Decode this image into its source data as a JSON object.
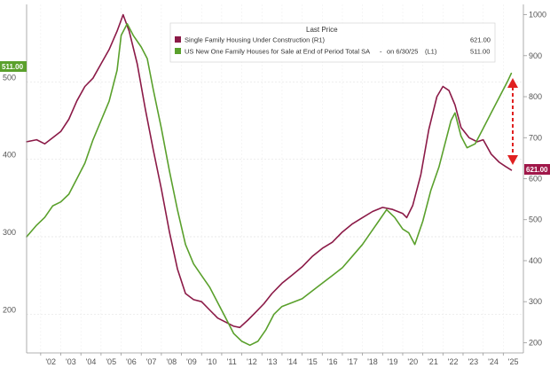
{
  "chart_data": {
    "type": "line",
    "title": "",
    "xlabel": "",
    "ylabel": "",
    "x_tick_labels": [
      "'02",
      "'03",
      "'04",
      "'05",
      "'06",
      "'07",
      "'08",
      "'09",
      "'10",
      "'11",
      "'12",
      "'13",
      "'14",
      "'15",
      "'16",
      "'17",
      "'18",
      "'19",
      "'20",
      "'21",
      "'22",
      "'23",
      "'24",
      "'25"
    ],
    "x_range": [
      2001.3,
      2026.0
    ],
    "left_axis": {
      "ylim": [
        150,
        600
      ],
      "ticks": [
        200,
        300,
        400,
        500
      ]
    },
    "right_axis": {
      "ylim": [
        175,
        1025
      ],
      "ticks": [
        200,
        300,
        400,
        500,
        600,
        700,
        800,
        900,
        1000
      ]
    },
    "legend": {
      "header": "Last Price",
      "placement": "top-center"
    },
    "grid": true,
    "series": [
      {
        "name": "Single Family Housing Under Construction (R1)",
        "last_price": "621.00",
        "badge": "621.00",
        "axis": "right",
        "color": "#8b1a47",
        "x": [
          2001.3,
          2001.8,
          2002.2,
          2002.6,
          2003.0,
          2003.4,
          2003.8,
          2004.2,
          2004.6,
          2005.0,
          2005.4,
          2005.8,
          2006.1,
          2006.4,
          2006.8,
          2007.2,
          2007.6,
          2008.0,
          2008.4,
          2008.8,
          2009.2,
          2009.6,
          2010.0,
          2010.4,
          2010.8,
          2011.2,
          2011.6,
          2011.9,
          2012.3,
          2012.7,
          2013.1,
          2013.5,
          2014.0,
          2014.5,
          2015.0,
          2015.5,
          2016.0,
          2016.5,
          2017.0,
          2017.5,
          2018.0,
          2018.5,
          2019.0,
          2019.5,
          2020.0,
          2020.2,
          2020.5,
          2020.9,
          2021.3,
          2021.7,
          2022.0,
          2022.3,
          2022.6,
          2022.9,
          2023.3,
          2023.7,
          2024.0,
          2024.4,
          2024.8,
          2025.1,
          2025.4
        ],
        "y": [
          690,
          695,
          685,
          700,
          715,
          745,
          790,
          825,
          845,
          880,
          915,
          960,
          1000,
          960,
          880,
          770,
          670,
          575,
          470,
          380,
          320,
          305,
          300,
          280,
          260,
          250,
          240,
          237,
          255,
          275,
          295,
          320,
          345,
          365,
          385,
          410,
          430,
          445,
          470,
          490,
          505,
          520,
          530,
          525,
          515,
          505,
          535,
          610,
          720,
          800,
          825,
          815,
          780,
          725,
          700,
          690,
          695,
          660,
          640,
          630,
          621
        ]
      },
      {
        "name": "US New One Family Houses for Sale at End of Period Total SA",
        "date_label": "on 6/30/25",
        "axis_note": "(L1)",
        "last_price": "511.00",
        "badge": "511.00",
        "axis": "left",
        "color": "#5aa02c",
        "x": [
          2001.3,
          2001.8,
          2002.2,
          2002.6,
          2003.0,
          2003.4,
          2003.8,
          2004.2,
          2004.6,
          2005.0,
          2005.4,
          2005.8,
          2006.0,
          2006.3,
          2006.6,
          2007.0,
          2007.3,
          2007.6,
          2008.0,
          2008.4,
          2008.8,
          2009.2,
          2009.6,
          2010.0,
          2010.4,
          2010.8,
          2011.2,
          2011.6,
          2012.0,
          2012.4,
          2012.8,
          2013.2,
          2013.6,
          2014.0,
          2014.5,
          2015.0,
          2015.5,
          2016.0,
          2016.5,
          2017.0,
          2017.5,
          2018.0,
          2018.4,
          2018.8,
          2019.2,
          2019.6,
          2020.0,
          2020.3,
          2020.6,
          2021.0,
          2021.4,
          2021.8,
          2022.1,
          2022.4,
          2022.6,
          2022.9,
          2023.2,
          2023.6,
          2024.0,
          2024.4,
          2024.8,
          2025.2,
          2025.4
        ],
        "y": [
          300,
          315,
          325,
          340,
          345,
          355,
          375,
          395,
          425,
          450,
          475,
          515,
          560,
          575,
          560,
          545,
          530,
          490,
          440,
          385,
          335,
          290,
          265,
          250,
          235,
          215,
          195,
          175,
          165,
          160,
          165,
          180,
          200,
          210,
          215,
          220,
          230,
          240,
          250,
          260,
          275,
          290,
          305,
          320,
          335,
          325,
          310,
          305,
          290,
          320,
          360,
          390,
          420,
          450,
          460,
          430,
          415,
          420,
          440,
          460,
          480,
          500,
          511
        ]
      }
    ],
    "annotation": "red dashed double-headed arrow marking the gap between the two series in 2025"
  }
}
